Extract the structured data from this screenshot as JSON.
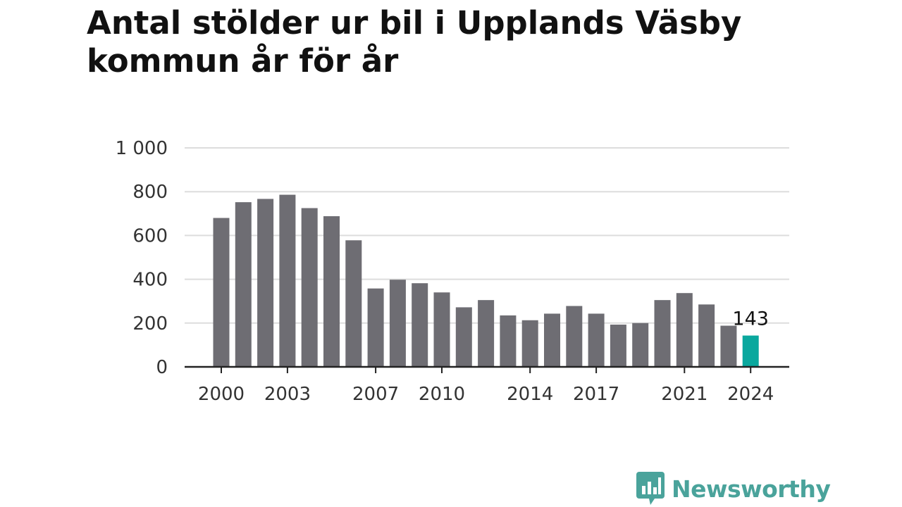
{
  "chart_data": {
    "type": "bar",
    "title": "Antal stölder ur bil i Upplands Väsby kommun år för år",
    "xlabel": "",
    "ylabel": "",
    "categories": [
      "2000",
      "2001",
      "2002",
      "2003",
      "2004",
      "2005",
      "2006",
      "2007",
      "2008",
      "2009",
      "2010",
      "2011",
      "2012",
      "2013",
      "2014",
      "2015",
      "2016",
      "2017",
      "2018",
      "2019",
      "2020",
      "2021",
      "2022",
      "2023",
      "2024"
    ],
    "values": [
      680,
      752,
      767,
      786,
      725,
      688,
      578,
      358,
      398,
      382,
      340,
      272,
      305,
      235,
      213,
      243,
      278,
      243,
      193,
      200,
      305,
      337,
      285,
      188,
      143
    ],
    "x_tick_labels": [
      "2000",
      "2003",
      "2007",
      "2010",
      "2014",
      "2017",
      "2021",
      "2024"
    ],
    "y_ticks": [
      0,
      200,
      400,
      600,
      800,
      1000
    ],
    "y_tick_labels": [
      "0",
      "200",
      "400",
      "600",
      "800",
      "1 000"
    ],
    "ylim": [
      0,
      1000
    ],
    "grid": true,
    "highlight_category": "2024",
    "highlight_label": "143",
    "colors": {
      "bar": "#6e6d73",
      "highlight": "#0aa89e",
      "grid": "#dddddd",
      "axis": "#222222"
    }
  },
  "logo": {
    "text": "Newsworthy",
    "icon": "bar-chart-speech-bubble-icon",
    "color": "#4aa39b"
  }
}
